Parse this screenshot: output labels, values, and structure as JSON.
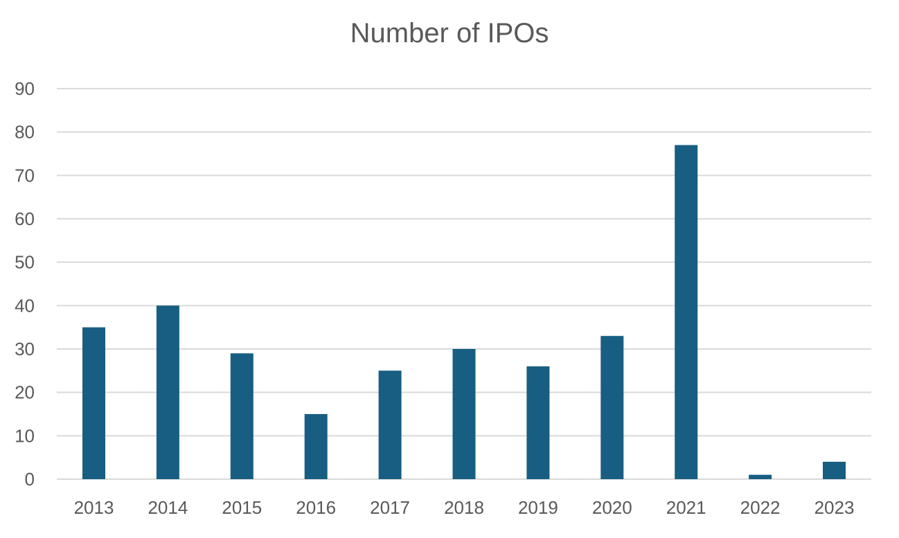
{
  "chart_data": {
    "type": "bar",
    "title": "Number of IPOs",
    "xlabel": "",
    "ylabel": "",
    "categories": [
      "2013",
      "2014",
      "2015",
      "2016",
      "2017",
      "2018",
      "2019",
      "2020",
      "2021",
      "2022",
      "2023"
    ],
    "values": [
      35,
      40,
      29,
      15,
      25,
      30,
      26,
      33,
      77,
      1,
      4
    ],
    "ylim": [
      0,
      90
    ],
    "yticks": [
      "0",
      "10",
      "20",
      "30",
      "40",
      "50",
      "60",
      "70",
      "80",
      "90"
    ],
    "grid": true,
    "legend": "none",
    "colors": {
      "bar": "#175e82",
      "grid": "#d9d9d9",
      "text": "#595959"
    }
  }
}
